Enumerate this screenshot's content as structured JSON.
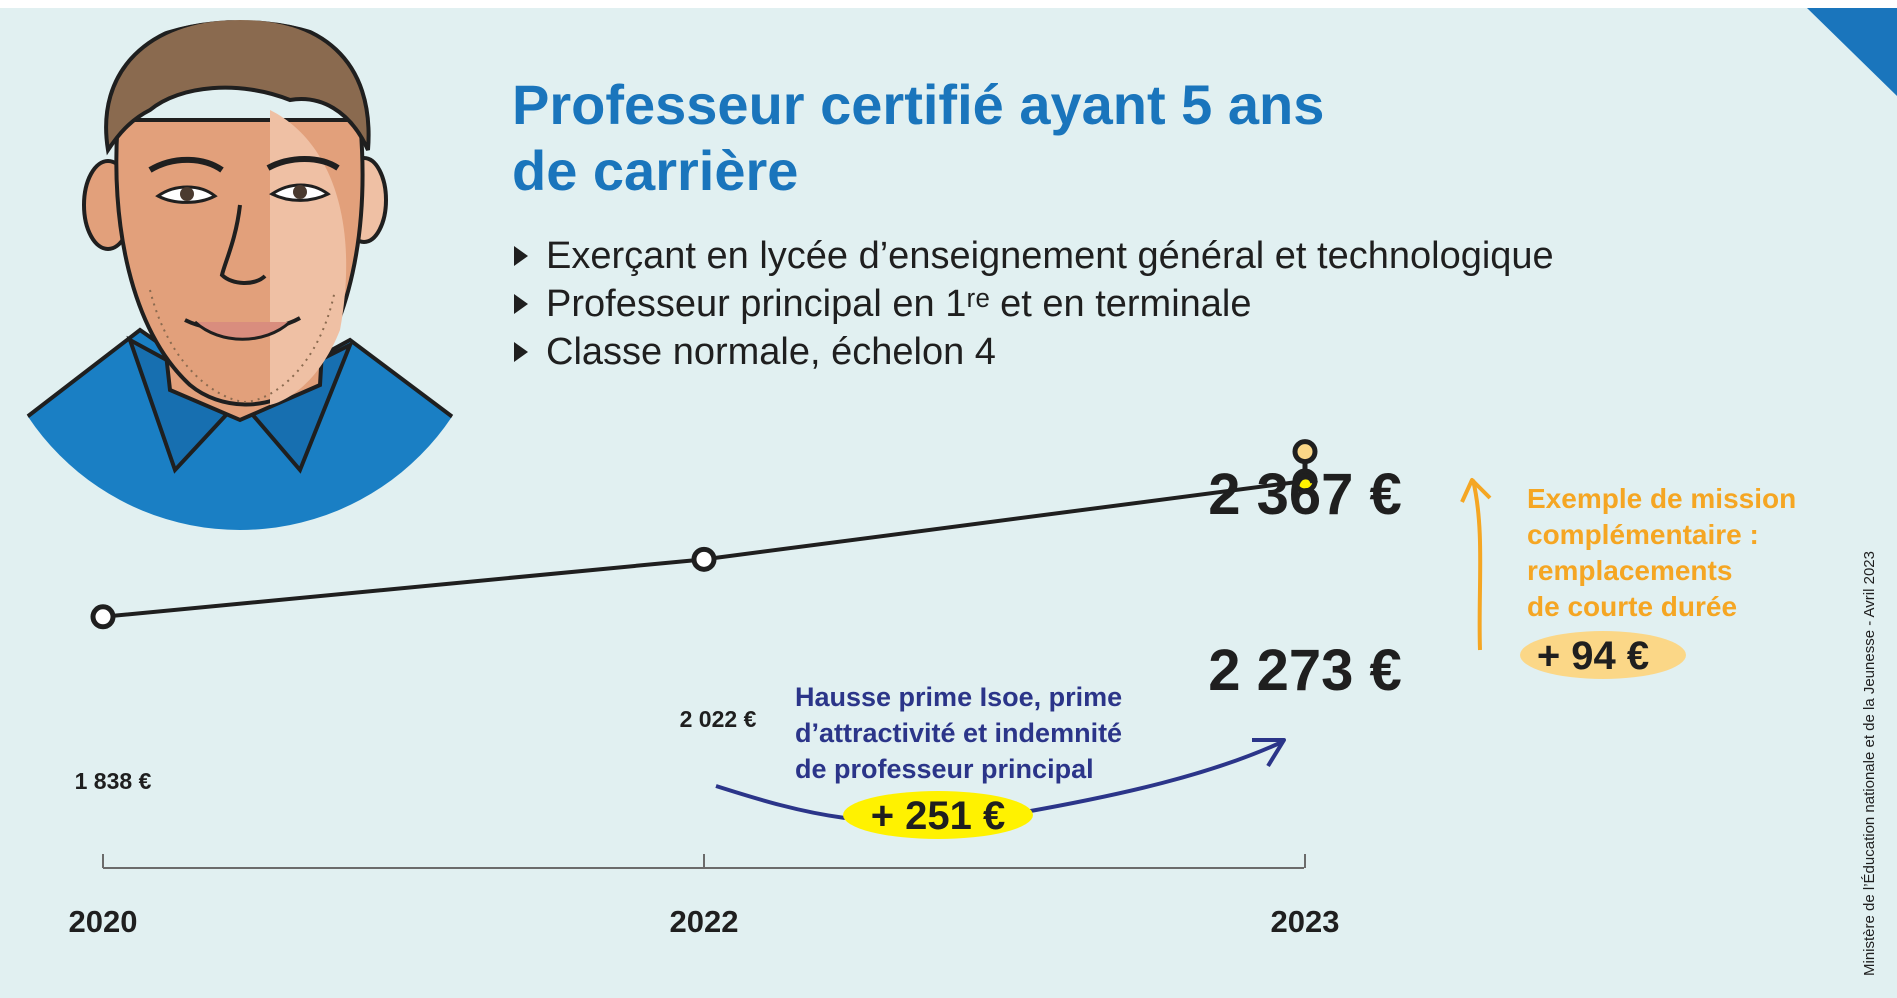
{
  "header": {
    "title_line1": "Professeur certifié ayant 5 ans",
    "title_line2": "de carrière"
  },
  "bullets": [
    "Exerçant en lycée d’enseignement général et technologique",
    "Professeur principal en 1ʳᵉ et en terminale",
    "Classe normale, échelon 4"
  ],
  "colors": {
    "accent_blue": "#1a75bc",
    "navy": "#2b3589",
    "orange": "#f5a623",
    "highlight_yellow": "#fff200",
    "background": "#e1f0f1"
  },
  "chart_data": {
    "type": "line",
    "x": [
      "2020",
      "2022",
      "2023"
    ],
    "series": [
      {
        "values": [
          1838,
          2022,
          2273
        ]
      }
    ],
    "point_labels": [
      "1 838 €",
      "2 022 €",
      "2 273 €"
    ],
    "extension": {
      "x": "2023",
      "value": 2367,
      "label": "2 367 €"
    },
    "annotations": [
      {
        "lines": [
          "Hausse prime Isoe, prime",
          "d’attractivité et indemnité",
          "de professeur principal"
        ],
        "badge": "+ 251 €"
      },
      {
        "lines": [
          "Exemple de mission",
          "complémentaire :",
          "remplacements",
          "de courte durée"
        ],
        "badge": "+ 94 €"
      }
    ],
    "title": "",
    "xlabel": "",
    "ylabel": "",
    "grid": false
  },
  "credit": "Ministère de l’Éducation nationale et de la Jeunesse - Avril 2023"
}
